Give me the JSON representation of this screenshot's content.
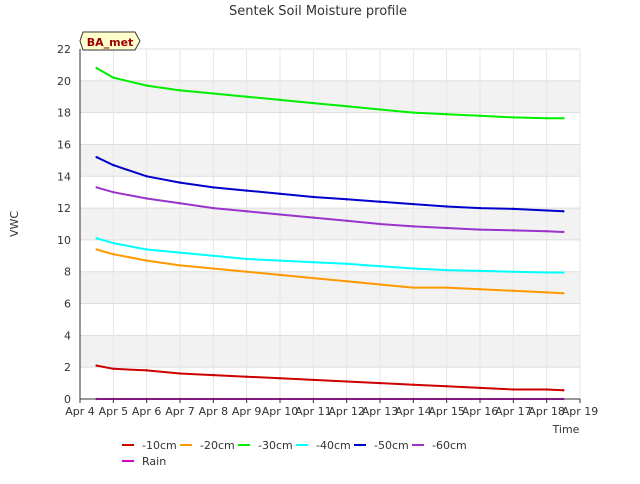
{
  "chart_data": {
    "type": "line",
    "title": "Sentek Soil Moisture profile",
    "xlabel": "Time",
    "ylabel": "VWC",
    "site_label": "BA_met",
    "x_ticks": [
      "Apr 4",
      "Apr 5",
      "Apr 6",
      "Apr 7",
      "Apr 8",
      "Apr 9",
      "Apr 10",
      "Apr 11",
      "Apr 12",
      "Apr 13",
      "Apr 14",
      "Apr 15",
      "Apr 16",
      "Apr 17",
      "Apr 18",
      "Apr 19"
    ],
    "y_ticks": [
      0,
      2,
      4,
      6,
      8,
      10,
      12,
      14,
      16,
      18,
      20,
      22
    ],
    "xlim": [
      "Apr 4",
      "Apr 19"
    ],
    "ylim": [
      0,
      22
    ],
    "grid": true,
    "background_bands": true,
    "legend_position": "bottom",
    "x": [
      "Apr 4 12:00",
      "Apr 5 00:00",
      "Apr 6 00:00",
      "Apr 7 00:00",
      "Apr 8 00:00",
      "Apr 9 00:00",
      "Apr 10 00:00",
      "Apr 11 00:00",
      "Apr 12 00:00",
      "Apr 13 00:00",
      "Apr 14 00:00",
      "Apr 15 00:00",
      "Apr 16 00:00",
      "Apr 17 00:00",
      "Apr 18 00:00",
      "Apr 18 12:00"
    ],
    "series": [
      {
        "name": "-10cm",
        "color": "#cc0000",
        "values": [
          2.1,
          1.9,
          1.8,
          1.6,
          1.5,
          1.4,
          1.3,
          1.2,
          1.1,
          1.0,
          0.9,
          0.8,
          0.7,
          0.6,
          0.6,
          0.55
        ]
      },
      {
        "name": "-20cm",
        "color": "#ff9900",
        "values": [
          9.4,
          9.1,
          8.7,
          8.4,
          8.2,
          8.0,
          7.8,
          7.6,
          7.4,
          7.2,
          7.0,
          7.0,
          6.9,
          6.8,
          6.7,
          6.65
        ]
      },
      {
        "name": "-30cm",
        "color": "#00ee00",
        "values": [
          20.8,
          20.2,
          19.7,
          19.4,
          19.2,
          19.0,
          18.8,
          18.6,
          18.4,
          18.2,
          18.0,
          17.9,
          17.8,
          17.7,
          17.65,
          17.65
        ]
      },
      {
        "name": "-40cm",
        "color": "#00ffff",
        "values": [
          10.1,
          9.8,
          9.4,
          9.2,
          9.0,
          8.8,
          8.7,
          8.6,
          8.5,
          8.35,
          8.2,
          8.1,
          8.05,
          8.0,
          7.95,
          7.95
        ]
      },
      {
        "name": "-50cm",
        "color": "#0000cc",
        "values": [
          15.2,
          14.7,
          14.0,
          13.6,
          13.3,
          13.1,
          12.9,
          12.7,
          12.55,
          12.4,
          12.25,
          12.1,
          12.0,
          11.95,
          11.85,
          11.8
        ]
      },
      {
        "name": "-60cm",
        "color": "#9933cc",
        "values": [
          13.3,
          13.0,
          12.6,
          12.3,
          12.0,
          11.8,
          11.6,
          11.4,
          11.2,
          11.0,
          10.85,
          10.75,
          10.65,
          10.6,
          10.55,
          10.5
        ]
      },
      {
        "name": "Rain",
        "color": "#cc00cc",
        "values": [
          0,
          0,
          0,
          0,
          0,
          0,
          0,
          0,
          0,
          0,
          0,
          0,
          0,
          0,
          0,
          0
        ]
      }
    ]
  }
}
